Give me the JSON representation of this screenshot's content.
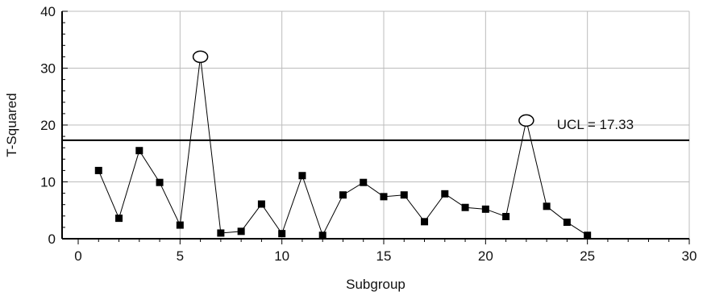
{
  "chart_data": {
    "type": "line",
    "title": "",
    "xlabel": "Subgroup",
    "ylabel": "T-Squared",
    "xlim": [
      0,
      30
    ],
    "ylim": [
      0,
      40
    ],
    "xticks": [
      0,
      5,
      10,
      15,
      20,
      25,
      30
    ],
    "yticks": [
      0,
      10,
      20,
      30,
      40
    ],
    "grid": true,
    "legend": "none",
    "series": [
      {
        "x": [
          1,
          2,
          3,
          4,
          5,
          6,
          7,
          8,
          9,
          10,
          11,
          12,
          13,
          14,
          15,
          16,
          17,
          18,
          19,
          20,
          21,
          22,
          23,
          24,
          25
        ],
        "values": [
          12.0,
          3.6,
          15.5,
          9.9,
          2.4,
          32.0,
          1.0,
          1.3,
          6.1,
          0.9,
          11.1,
          0.6,
          7.7,
          9.9,
          7.4,
          7.7,
          3.0,
          7.9,
          5.5,
          5.2,
          3.9,
          20.8,
          5.7,
          2.9,
          0.6
        ],
        "color": "#000000"
      }
    ],
    "reference_line": {
      "value": 17.33,
      "label": "UCL = 17.33"
    },
    "flagged_points": [
      6,
      22
    ],
    "colors": {
      "line": "#000000",
      "grid": "#bcbcbc",
      "axis": "#000000"
    }
  }
}
